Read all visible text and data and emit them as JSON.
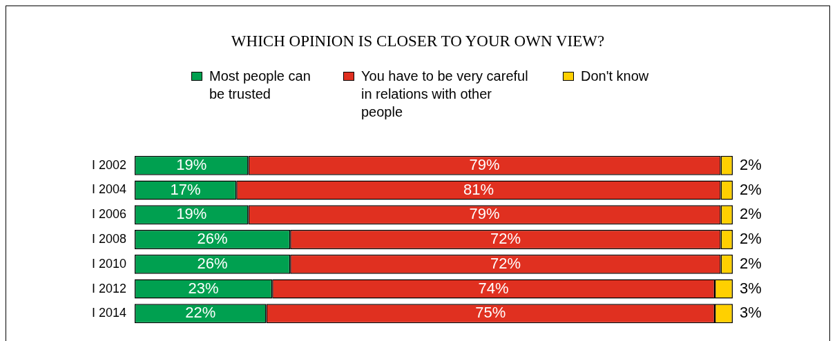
{
  "chart_data": {
    "type": "bar",
    "orientation": "horizontal",
    "stacked": true,
    "title": "WHICH OPINION IS CLOSER TO YOUR OWN VIEW?",
    "categories": [
      "I 2002",
      "I 2004",
      "I 2006",
      "I 2008",
      "I 2010",
      "I 2012",
      "I 2014"
    ],
    "series": [
      {
        "name": "Most people can be trusted",
        "color": "#00a050",
        "values": [
          19,
          17,
          19,
          26,
          26,
          23,
          22
        ],
        "value_labels": [
          "19%",
          "17%",
          "19%",
          "26%",
          "26%",
          "23%",
          "22%"
        ]
      },
      {
        "name": "You have to be very careful in relations with other people",
        "color": "#e03020",
        "values": [
          79,
          81,
          79,
          72,
          72,
          74,
          75
        ],
        "value_labels": [
          "79%",
          "81%",
          "79%",
          "72%",
          "72%",
          "74%",
          "75%"
        ]
      },
      {
        "name": "Don't know",
        "color": "#ffd000",
        "values": [
          2,
          2,
          2,
          2,
          2,
          3,
          3
        ],
        "value_labels": [
          "2%",
          "2%",
          "2%",
          "2%",
          "2%",
          "3%",
          "3%"
        ]
      }
    ],
    "legend": "top",
    "grid": false
  }
}
